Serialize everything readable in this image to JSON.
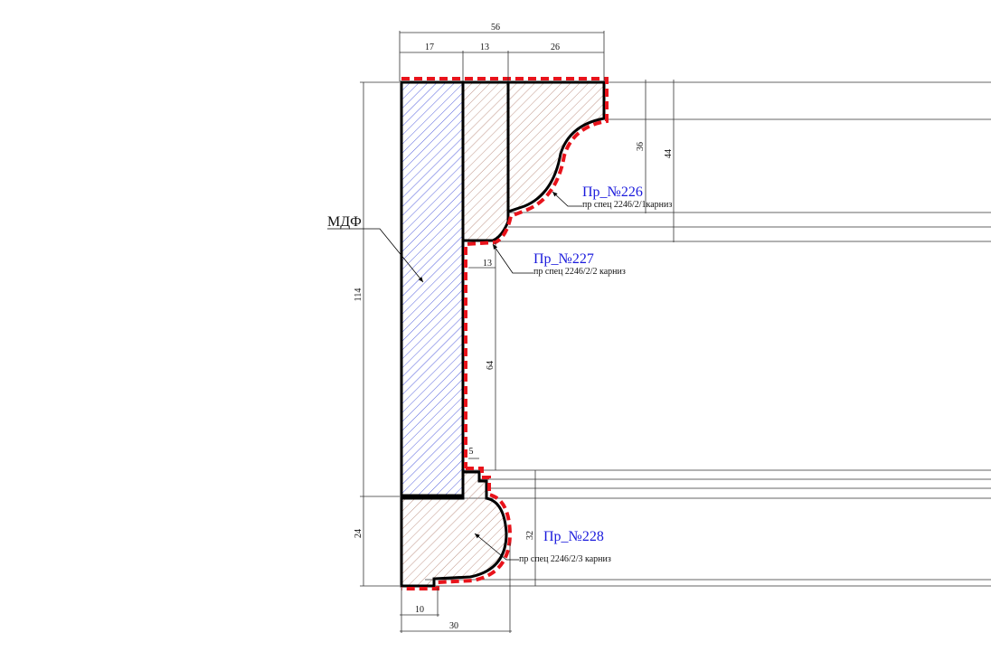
{
  "material_label": "МДФ",
  "profiles": [
    {
      "id": "p226",
      "name": "Пр_№226",
      "spec": "пр спец 2246/2/1карниз"
    },
    {
      "id": "p227",
      "name": "Пр_№227",
      "spec": "пр спец 2246/2/2 карниз"
    },
    {
      "id": "p228",
      "name": "Пр_№228",
      "spec": "пр спец 2246/2/3 карниз"
    }
  ],
  "dimensions": {
    "top_total": "56",
    "top_a": "17",
    "top_b": "13",
    "top_c": "26",
    "right_36": "36",
    "right_44": "44",
    "left_114": "114",
    "left_24": "24",
    "mid_13": "13",
    "mid_64": "64",
    "mid_5": "5",
    "right_32": "32",
    "bottom_10": "10",
    "bottom_30": "30"
  },
  "colors": {
    "outline": "#000000",
    "dashed_contour": "#e8131b",
    "mdf_hatch": "#2b3bd6",
    "wood_hatch": "#b07b6a",
    "label_blue": "#1a1adc"
  }
}
